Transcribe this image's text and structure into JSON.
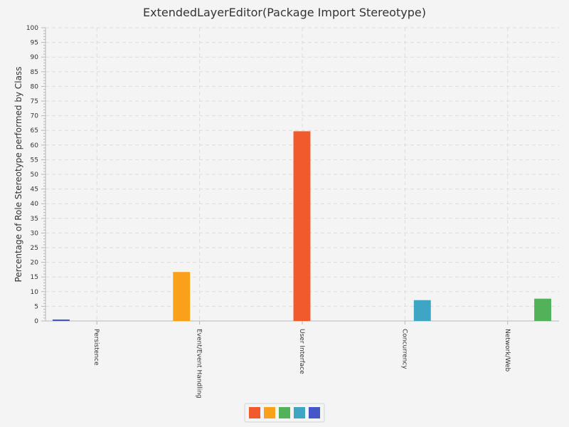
{
  "chart_data": {
    "type": "bar",
    "title": "ExtendedLayerEditor(Package Import Stereotype)",
    "xlabel": "",
    "ylabel": "Percentage of Role Stereotype performed by Class",
    "ylim": [
      0,
      100
    ],
    "ytick_step": 5,
    "grid": true,
    "legend_position": "bottom",
    "categories": [
      "Persistence",
      "Event/Event Handling",
      "User Interface",
      "Concurrency",
      "Network/Web"
    ],
    "series": [
      {
        "values": [
          0.5,
          0,
          0,
          0,
          0
        ],
        "color": "#4557c8"
      },
      {
        "values": [
          0,
          16.7,
          0,
          0,
          0
        ],
        "color": "#f9a11b"
      },
      {
        "values": [
          0,
          0,
          64.7,
          0,
          0
        ],
        "color": "#f05a2c"
      },
      {
        "values": [
          0,
          0,
          0,
          7.1,
          0
        ],
        "color": "#3ea5c4"
      },
      {
        "values": [
          0,
          0,
          0,
          0,
          7.6
        ],
        "color": "#52b25a"
      }
    ],
    "legend_colors": [
      "#f05a2c",
      "#f9a11b",
      "#52b25a",
      "#3ea5c4",
      "#4557c8"
    ]
  }
}
